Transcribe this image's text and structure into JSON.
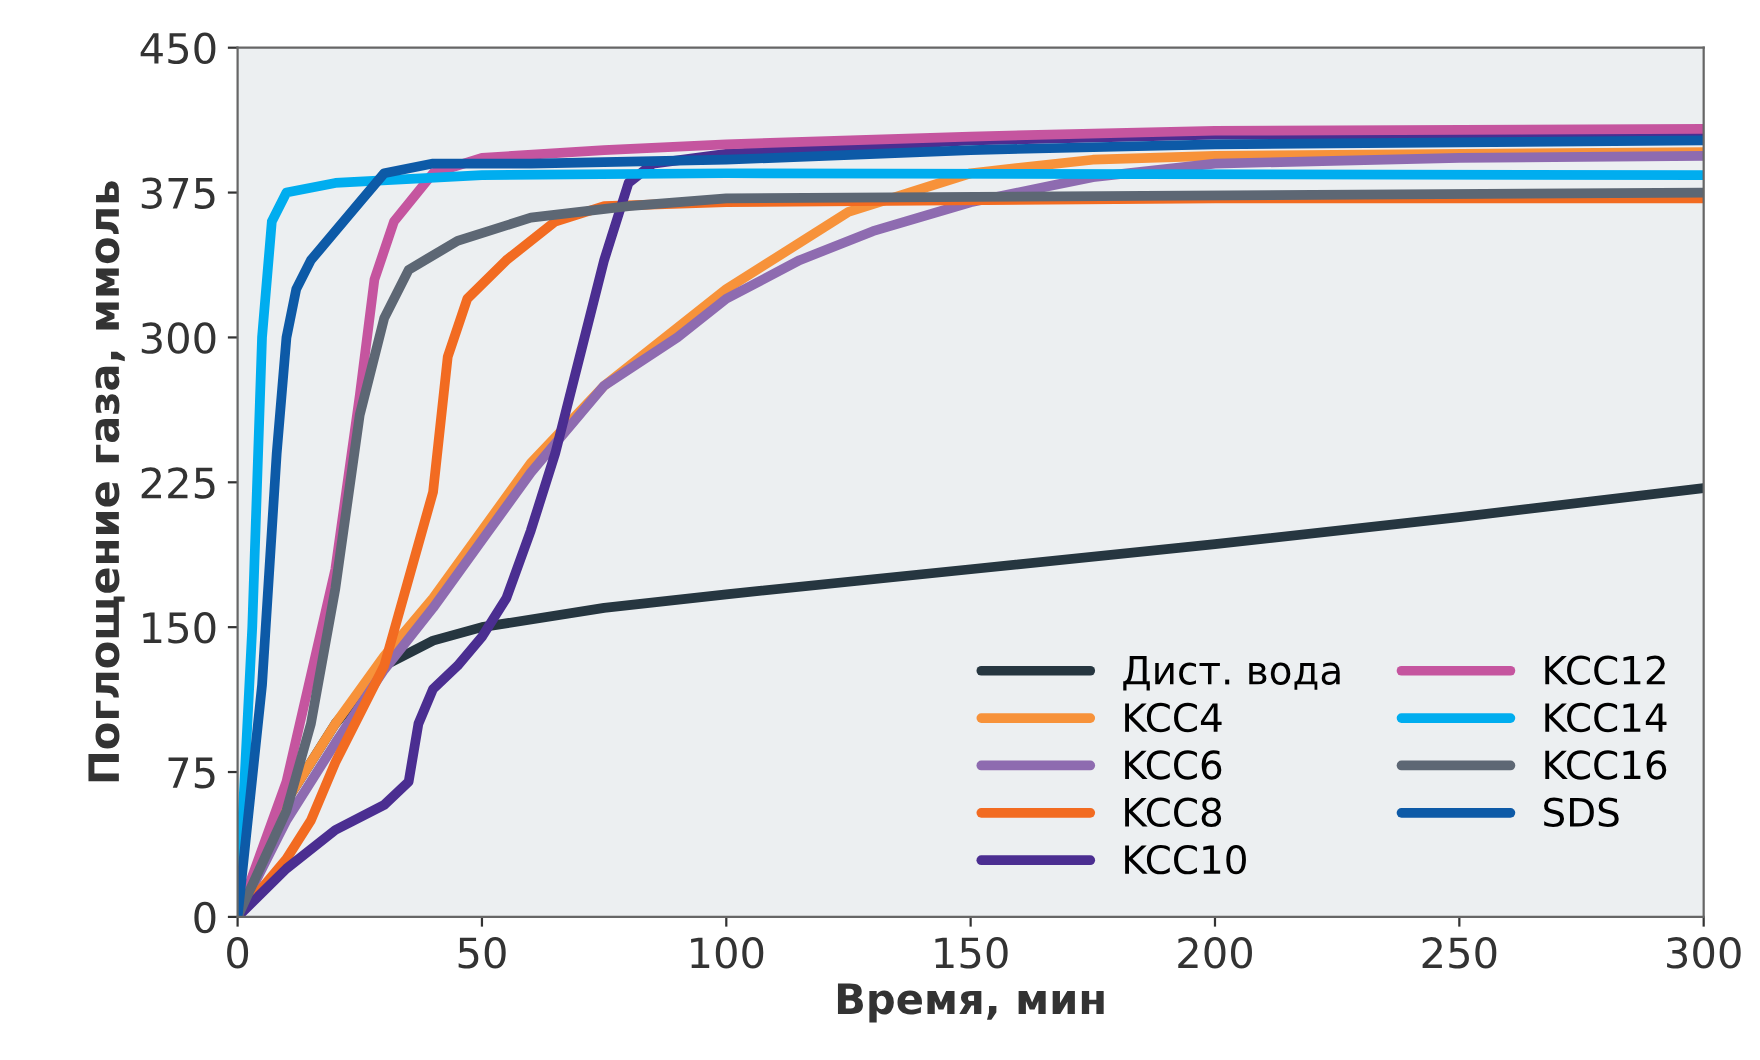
{
  "chart_data": {
    "type": "line",
    "xlabel": "Время, мин",
    "ylabel": "Поглощение газа, ммоль",
    "xlim": [
      0,
      300
    ],
    "xticks": [
      0,
      50,
      100,
      150,
      200,
      250,
      300
    ],
    "ylim": [
      0,
      450
    ],
    "yticks": [
      0,
      75,
      150,
      225,
      300,
      375,
      450
    ],
    "grid": false,
    "legend": "bottom right",
    "marker": "none",
    "line_style": "solid",
    "series": [
      {
        "name": "Дист. вода",
        "color": "#263640",
        "x": [
          0,
          10,
          20,
          30,
          40,
          50,
          75,
          100,
          150,
          200,
          250,
          300
        ],
        "values": [
          0,
          60,
          100,
          130,
          143,
          150,
          160,
          167,
          180,
          193,
          207,
          222
        ]
      },
      {
        "name": "KCC4",
        "color": "#f7923a",
        "x": [
          0,
          10,
          20,
          30,
          40,
          50,
          60,
          75,
          100,
          125,
          150,
          175,
          200,
          300
        ],
        "values": [
          0,
          60,
          100,
          135,
          165,
          200,
          235,
          275,
          325,
          365,
          385,
          392,
          394,
          396
        ]
      },
      {
        "name": "KCC6",
        "color": "#8e6bb0",
        "x": [
          0,
          10,
          20,
          30,
          40,
          50,
          60,
          75,
          90,
          100,
          115,
          130,
          150,
          175,
          200,
          250,
          300
        ],
        "values": [
          0,
          50,
          90,
          128,
          160,
          195,
          230,
          275,
          300,
          320,
          340,
          355,
          370,
          383,
          390,
          393,
          394
        ]
      },
      {
        "name": "KCC8",
        "color": "#f26b21",
        "x": [
          0,
          10,
          15,
          20,
          30,
          40,
          43,
          47,
          55,
          65,
          75,
          100,
          200,
          300
        ],
        "values": [
          0,
          30,
          50,
          80,
          130,
          220,
          290,
          320,
          340,
          360,
          368,
          370,
          372,
          372
        ]
      },
      {
        "name": "KCC10",
        "color": "#4b2e91",
        "x": [
          0,
          10,
          20,
          30,
          35,
          37,
          40,
          45,
          50,
          55,
          60,
          65,
          70,
          75,
          80,
          85,
          100,
          150,
          200,
          300
        ],
        "values": [
          0,
          25,
          45,
          58,
          70,
          100,
          118,
          130,
          145,
          165,
          200,
          240,
          290,
          340,
          380,
          390,
          395,
          402,
          405,
          405
        ]
      },
      {
        "name": "KCC12",
        "color": "#c5559f",
        "x": [
          0,
          10,
          20,
          25,
          28,
          32,
          40,
          50,
          75,
          100,
          150,
          200,
          300
        ],
        "values": [
          0,
          70,
          180,
          270,
          330,
          360,
          385,
          393,
          397,
          400,
          404,
          407,
          408
        ]
      },
      {
        "name": "KCC14",
        "color": "#00adef",
        "x": [
          0,
          3,
          5,
          7,
          10,
          20,
          50,
          100,
          300
        ],
        "values": [
          0,
          150,
          300,
          360,
          375,
          380,
          384,
          385,
          384
        ]
      },
      {
        "name": "KCC16",
        "color": "#5d6774",
        "x": [
          0,
          10,
          15,
          20,
          25,
          30,
          35,
          45,
          60,
          80,
          100,
          300
        ],
        "values": [
          0,
          55,
          100,
          170,
          260,
          310,
          335,
          350,
          362,
          368,
          372,
          375
        ]
      },
      {
        "name": "SDS",
        "color": "#0d5aa7",
        "x": [
          0,
          5,
          8,
          10,
          12,
          15,
          20,
          25,
          30,
          40,
          60,
          100,
          150,
          200,
          300
        ],
        "values": [
          0,
          120,
          240,
          300,
          325,
          340,
          355,
          370,
          385,
          390,
          390,
          392,
          397,
          400,
          402
        ]
      }
    ]
  }
}
